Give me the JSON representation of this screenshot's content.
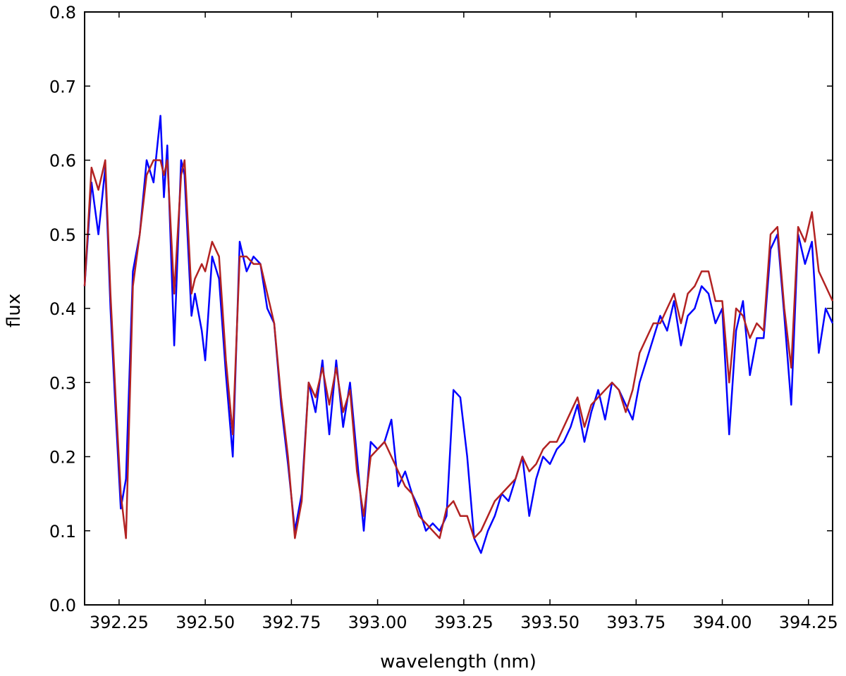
{
  "chart_data": {
    "type": "line",
    "xlabel": "wavelength (nm)",
    "ylabel": "flux",
    "xlim": [
      392.15,
      394.32
    ],
    "ylim": [
      0.0,
      0.8
    ],
    "xticks": [
      392.25,
      392.5,
      392.75,
      393.0,
      393.25,
      393.5,
      393.75,
      394.0,
      394.25
    ],
    "xtick_labels": [
      "392.25",
      "392.50",
      "392.75",
      "393.00",
      "393.25",
      "393.50",
      "393.75",
      "394.00",
      "394.25"
    ],
    "yticks": [
      0.0,
      0.1,
      0.2,
      0.3,
      0.4,
      0.5,
      0.6,
      0.7,
      0.8
    ],
    "ytick_labels": [
      "0.0",
      "0.1",
      "0.2",
      "0.3",
      "0.4",
      "0.5",
      "0.6",
      "0.7",
      "0.8"
    ],
    "grid": false,
    "series": [
      {
        "color": "#0000ff",
        "x": [
          392.15,
          392.17,
          392.19,
          392.21,
          392.225,
          392.24,
          392.255,
          392.27,
          392.29,
          392.31,
          392.33,
          392.35,
          392.37,
          392.38,
          392.39,
          392.41,
          392.43,
          392.44,
          392.46,
          392.47,
          392.49,
          392.5,
          392.52,
          392.54,
          392.56,
          392.58,
          392.6,
          392.62,
          392.64,
          392.66,
          392.68,
          392.7,
          392.72,
          392.74,
          392.76,
          392.78,
          392.8,
          392.82,
          392.84,
          392.86,
          392.88,
          392.9,
          392.92,
          392.94,
          392.96,
          392.98,
          393.0,
          393.02,
          393.04,
          393.06,
          393.08,
          393.1,
          393.12,
          393.14,
          393.16,
          393.18,
          393.2,
          393.22,
          393.24,
          393.26,
          393.28,
          393.3,
          393.32,
          393.34,
          393.36,
          393.38,
          393.4,
          393.42,
          393.44,
          393.46,
          393.48,
          393.5,
          393.52,
          393.54,
          393.56,
          393.58,
          393.6,
          393.62,
          393.64,
          393.66,
          393.68,
          393.7,
          393.72,
          393.74,
          393.76,
          393.78,
          393.8,
          393.82,
          393.84,
          393.86,
          393.88,
          393.9,
          393.92,
          393.94,
          393.96,
          393.98,
          394.0,
          394.02,
          394.04,
          394.06,
          394.08,
          394.1,
          394.12,
          394.14,
          394.16,
          394.18,
          394.2,
          394.22,
          394.24,
          394.26,
          394.28,
          394.3,
          394.32
        ],
        "y": [
          0.43,
          0.57,
          0.5,
          0.59,
          0.4,
          0.26,
          0.13,
          0.17,
          0.45,
          0.5,
          0.6,
          0.57,
          0.66,
          0.55,
          0.62,
          0.35,
          0.6,
          0.58,
          0.39,
          0.42,
          0.37,
          0.33,
          0.47,
          0.44,
          0.31,
          0.2,
          0.49,
          0.45,
          0.47,
          0.46,
          0.4,
          0.38,
          0.27,
          0.19,
          0.1,
          0.15,
          0.3,
          0.26,
          0.33,
          0.23,
          0.33,
          0.24,
          0.3,
          0.2,
          0.1,
          0.22,
          0.21,
          0.22,
          0.25,
          0.16,
          0.18,
          0.15,
          0.13,
          0.1,
          0.11,
          0.1,
          0.12,
          0.29,
          0.28,
          0.2,
          0.09,
          0.07,
          0.1,
          0.12,
          0.15,
          0.14,
          0.17,
          0.2,
          0.12,
          0.17,
          0.2,
          0.19,
          0.21,
          0.22,
          0.24,
          0.27,
          0.22,
          0.26,
          0.29,
          0.25,
          0.3,
          0.29,
          0.27,
          0.25,
          0.3,
          0.33,
          0.36,
          0.39,
          0.37,
          0.41,
          0.35,
          0.39,
          0.4,
          0.43,
          0.42,
          0.38,
          0.4,
          0.23,
          0.37,
          0.41,
          0.31,
          0.36,
          0.36,
          0.48,
          0.5,
          0.39,
          0.27,
          0.5,
          0.46,
          0.49,
          0.34,
          0.4,
          0.38
        ],
        "y_note": ""
      },
      {
        "color": "#b22222",
        "x": [
          392.15,
          392.17,
          392.19,
          392.21,
          392.225,
          392.24,
          392.255,
          392.27,
          392.29,
          392.31,
          392.33,
          392.35,
          392.37,
          392.38,
          392.39,
          392.41,
          392.43,
          392.44,
          392.46,
          392.47,
          392.49,
          392.5,
          392.52,
          392.54,
          392.56,
          392.58,
          392.6,
          392.62,
          392.64,
          392.66,
          392.68,
          392.7,
          392.72,
          392.74,
          392.76,
          392.78,
          392.8,
          392.82,
          392.84,
          392.86,
          392.88,
          392.9,
          392.92,
          392.94,
          392.96,
          392.98,
          393.0,
          393.02,
          393.04,
          393.06,
          393.08,
          393.1,
          393.12,
          393.14,
          393.16,
          393.18,
          393.2,
          393.22,
          393.24,
          393.26,
          393.28,
          393.3,
          393.32,
          393.34,
          393.36,
          393.38,
          393.4,
          393.42,
          393.44,
          393.46,
          393.48,
          393.5,
          393.52,
          393.54,
          393.56,
          393.58,
          393.6,
          393.62,
          393.64,
          393.66,
          393.68,
          393.7,
          393.72,
          393.74,
          393.76,
          393.78,
          393.8,
          393.82,
          393.84,
          393.86,
          393.88,
          393.9,
          393.92,
          393.94,
          393.96,
          393.98,
          394.0,
          394.02,
          394.04,
          394.06,
          394.08,
          394.1,
          394.12,
          394.14,
          394.16,
          394.18,
          394.2,
          394.22,
          394.24,
          394.26,
          394.28,
          394.3,
          394.32
        ],
        "y": [
          0.43,
          0.59,
          0.56,
          0.6,
          0.42,
          0.28,
          0.15,
          0.09,
          0.43,
          0.5,
          0.58,
          0.6,
          0.6,
          0.58,
          0.6,
          0.42,
          0.58,
          0.6,
          0.42,
          0.44,
          0.46,
          0.45,
          0.49,
          0.47,
          0.33,
          0.23,
          0.47,
          0.47,
          0.46,
          0.46,
          0.42,
          0.38,
          0.28,
          0.2,
          0.09,
          0.14,
          0.3,
          0.28,
          0.32,
          0.27,
          0.32,
          0.26,
          0.29,
          0.18,
          0.12,
          0.2,
          0.21,
          0.22,
          0.2,
          0.18,
          0.16,
          0.15,
          0.12,
          0.11,
          0.1,
          0.09,
          0.13,
          0.14,
          0.12,
          0.12,
          0.09,
          0.1,
          0.12,
          0.14,
          0.15,
          0.16,
          0.17,
          0.2,
          0.18,
          0.19,
          0.21,
          0.22,
          0.22,
          0.24,
          0.26,
          0.28,
          0.24,
          0.27,
          0.28,
          0.29,
          0.3,
          0.29,
          0.26,
          0.29,
          0.34,
          0.36,
          0.38,
          0.38,
          0.4,
          0.42,
          0.38,
          0.42,
          0.43,
          0.45,
          0.45,
          0.41,
          0.41,
          0.3,
          0.4,
          0.39,
          0.36,
          0.38,
          0.37,
          0.5,
          0.51,
          0.4,
          0.32,
          0.51,
          0.49,
          0.53,
          0.45,
          0.43,
          0.41
        ]
      }
    ]
  }
}
